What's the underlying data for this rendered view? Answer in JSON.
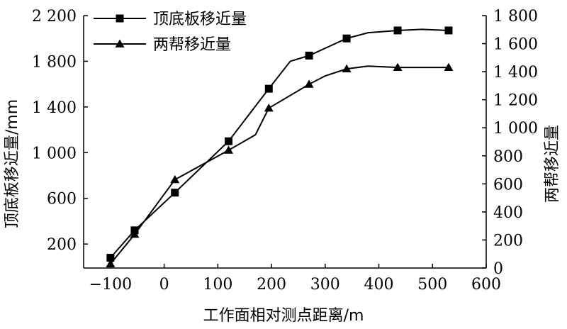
{
  "chart_data": {
    "type": "line",
    "xlabel": "工作面相对测点距离/m",
    "ylabel_left": "顶底板移近量/mm",
    "ylabel_right": "两帮移近量",
    "x_ticks": [
      -100,
      0,
      100,
      200,
      300,
      400,
      500,
      600
    ],
    "x_tick_labels": [
      "−100",
      "0",
      "100",
      "200",
      "300",
      "400",
      "500",
      "600"
    ],
    "xlim": [
      -150,
      600
    ],
    "y_left_ticks": [
      200,
      600,
      1000,
      1400,
      1800,
      2200
    ],
    "y_left_tick_labels": [
      "200",
      "600",
      "1 000",
      "1 400",
      "1 800",
      "2 200"
    ],
    "ylim_left": [
      -10,
      2200
    ],
    "y_right_ticks": [
      0,
      200,
      400,
      600,
      800,
      1000,
      1200,
      1400,
      1600,
      1800
    ],
    "y_right_tick_labels": [
      "0",
      "200",
      "400",
      "600",
      "800",
      "1 000",
      "1 200",
      "1 400",
      "1 600",
      "1 800"
    ],
    "ylim_right": [
      0,
      1800
    ],
    "legend_position": "top-left",
    "series": [
      {
        "name": "顶底板移近量",
        "axis": "left",
        "marker": "square",
        "color": "#000000",
        "x": [
          -100,
          -55,
          20,
          120,
          195,
          235,
          270,
          340,
          380,
          435,
          480,
          530
        ],
        "y": [
          80,
          320,
          650,
          1100,
          1560,
          1800,
          1850,
          2000,
          2050,
          2070,
          2080,
          2070
        ],
        "marked": [
          true,
          true,
          true,
          true,
          true,
          false,
          true,
          true,
          false,
          true,
          false,
          true
        ]
      },
      {
        "name": "两帮移近量",
        "axis": "right",
        "marker": "triangle",
        "color": "#000000",
        "x": [
          -100,
          -55,
          20,
          120,
          170,
          195,
          270,
          300,
          340,
          380,
          435,
          480,
          530
        ],
        "y": [
          30,
          240,
          630,
          840,
          950,
          1140,
          1310,
          1370,
          1420,
          1440,
          1430,
          1430,
          1430
        ],
        "marked": [
          true,
          true,
          true,
          true,
          false,
          true,
          true,
          false,
          true,
          false,
          true,
          false,
          true
        ]
      }
    ]
  }
}
